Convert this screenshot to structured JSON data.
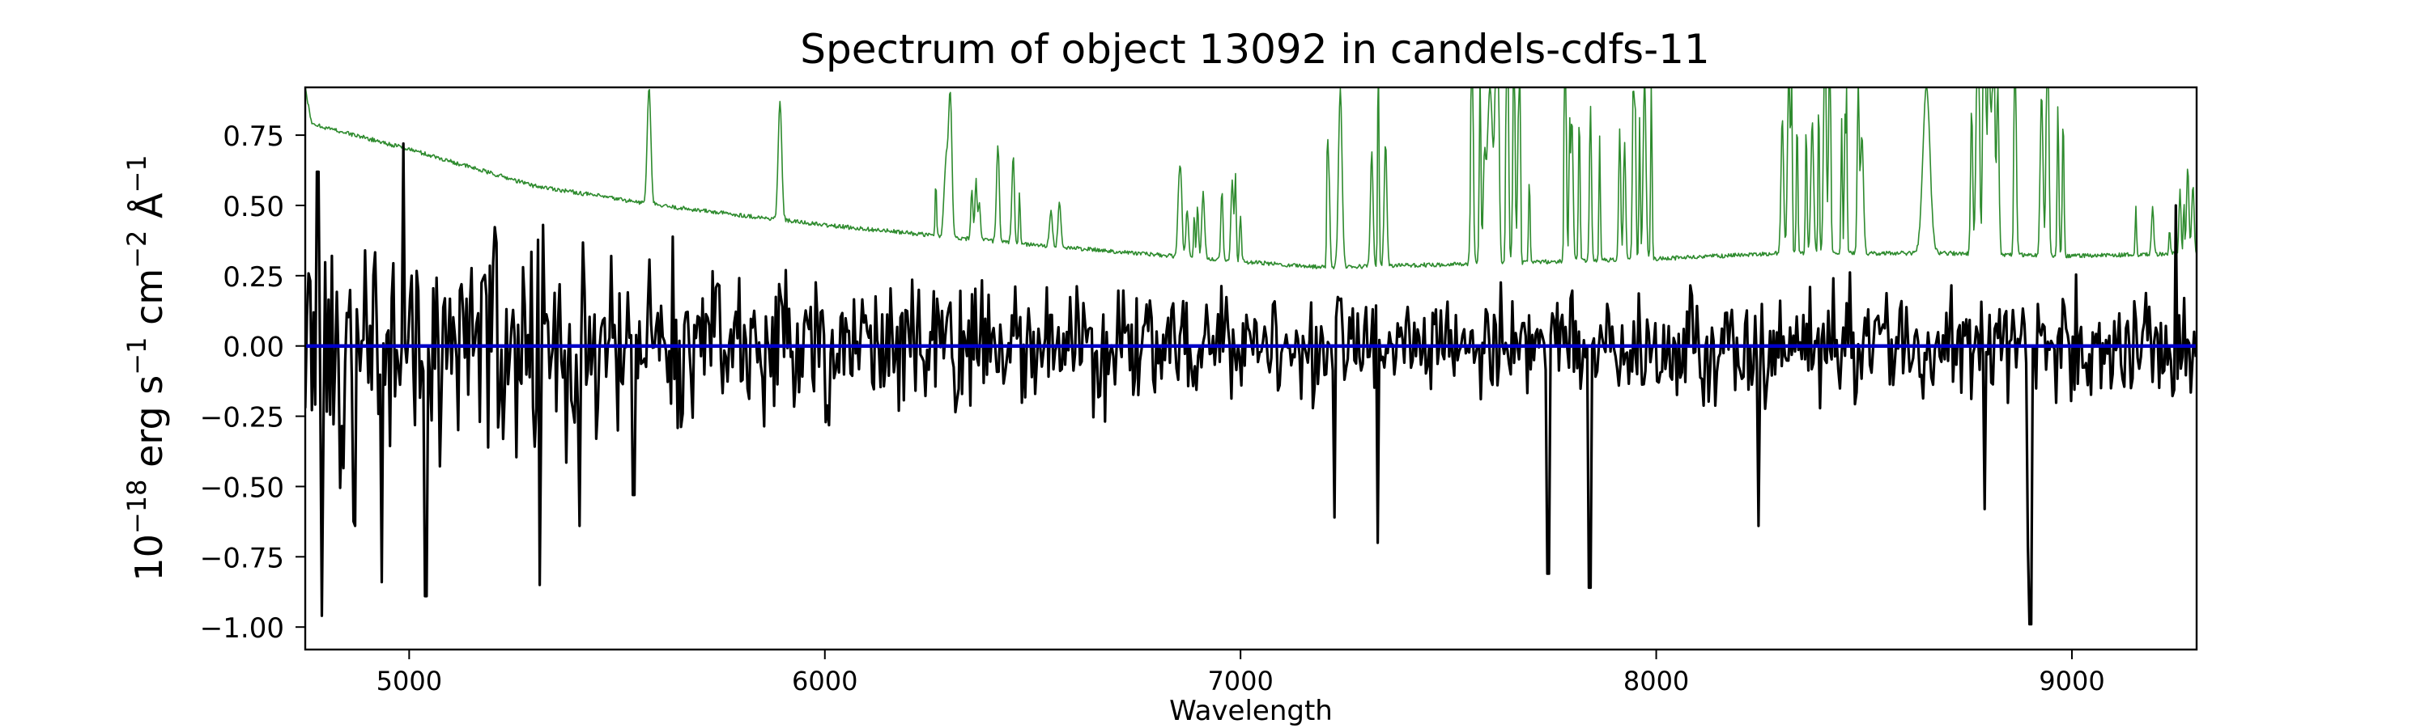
{
  "chart_data": {
    "type": "line",
    "title": "Spectrum of object 13092 in candels-cdfs-11",
    "xlabel": "Wavelength",
    "ylabel_parts": [
      "10",
      "−18",
      " erg s",
      "−1",
      " cm",
      "−2",
      " Å",
      "−1"
    ],
    "xlim": [
      4750,
      9300
    ],
    "ylim": [
      -1.08,
      0.92
    ],
    "x_ticks": [
      5000,
      6000,
      7000,
      8000,
      9000
    ],
    "y_ticks": [
      0.75,
      0.5,
      0.25,
      0.0,
      -0.25,
      -0.5,
      -0.75,
      -1.0
    ],
    "x_tick_labels": [
      "5000",
      "6000",
      "7000",
      "8000",
      "9000"
    ],
    "y_tick_labels": [
      "0.75",
      "0.50",
      "0.25",
      "0.00",
      "−0.25",
      "−0.50",
      "−0.75",
      "−1.00"
    ],
    "series": [
      {
        "role": "flux",
        "color": "#000000",
        "sampling": {
          "start": 4750,
          "end": 9300,
          "step": 4
        },
        "noise_seed": 13092,
        "spikes": [
          {
            "x": 4780,
            "y": 0.62
          },
          {
            "x": 4790,
            "y": -0.96
          },
          {
            "x": 4870,
            "y": -0.64
          },
          {
            "x": 4935,
            "y": -0.84
          },
          {
            "x": 4985,
            "y": 0.72
          },
          {
            "x": 5040,
            "y": -0.89
          },
          {
            "x": 5315,
            "y": -0.85
          },
          {
            "x": 5410,
            "y": -0.64
          },
          {
            "x": 5540,
            "y": -0.53
          },
          {
            "x": 7225,
            "y": -0.61
          },
          {
            "x": 7330,
            "y": -0.7
          },
          {
            "x": 7740,
            "y": -0.81
          },
          {
            "x": 7840,
            "y": -0.86
          },
          {
            "x": 8245,
            "y": -0.64
          },
          {
            "x": 8790,
            "y": -0.58
          },
          {
            "x": 8895,
            "y": -0.71
          },
          {
            "x": 8900,
            "y": -0.99
          },
          {
            "x": 9250,
            "y": 0.5
          }
        ]
      },
      {
        "role": "noise",
        "color": "#2e8b2e",
        "continuum": [
          {
            "x": 4750,
            "y": 0.92
          },
          {
            "x": 4765,
            "y": 0.79
          },
          {
            "x": 5000,
            "y": 0.7
          },
          {
            "x": 5300,
            "y": 0.57
          },
          {
            "x": 5600,
            "y": 0.5
          },
          {
            "x": 6000,
            "y": 0.43
          },
          {
            "x": 6500,
            "y": 0.36
          },
          {
            "x": 7000,
            "y": 0.3
          },
          {
            "x": 7200,
            "y": 0.28
          },
          {
            "x": 7500,
            "y": 0.29
          },
          {
            "x": 8000,
            "y": 0.31
          },
          {
            "x": 8300,
            "y": 0.33
          },
          {
            "x": 8700,
            "y": 0.33
          },
          {
            "x": 9000,
            "y": 0.32
          },
          {
            "x": 9300,
            "y": 0.33
          }
        ],
        "lines": [
          {
            "x": 5577,
            "y": 0.92,
            "w": 6
          },
          {
            "x": 5892,
            "y": 0.87,
            "w": 6
          },
          {
            "x": 6300,
            "y": 0.82,
            "w": 6
          },
          {
            "x": 6364,
            "y": 0.45,
            "w": 5
          },
          {
            "x": 7240,
            "y": 0.92,
            "w": 6
          },
          {
            "x": 7600,
            "y": 0.92,
            "w": 10
          },
          {
            "x": 8650,
            "y": 0.92,
            "w": 12
          }
        ],
        "forests": [
          {
            "start": 6200,
            "end": 6600,
            "count": 14,
            "min": 0.1,
            "max": 0.22
          },
          {
            "start": 6830,
            "end": 7000,
            "count": 10,
            "min": 0.15,
            "max": 0.3
          },
          {
            "start": 7200,
            "end": 7350,
            "count": 6,
            "min": 0.3,
            "max": 0.55
          },
          {
            "start": 7500,
            "end": 7700,
            "count": 14,
            "min": 0.25,
            "max": 0.7
          },
          {
            "start": 7750,
            "end": 8000,
            "count": 14,
            "min": 0.4,
            "max": 0.7
          },
          {
            "start": 8280,
            "end": 8500,
            "count": 16,
            "min": 0.4,
            "max": 0.65
          },
          {
            "start": 8750,
            "end": 9000,
            "count": 18,
            "min": 0.45,
            "max": 0.65
          },
          {
            "start": 9150,
            "end": 9300,
            "count": 8,
            "min": 0.05,
            "max": 0.25
          }
        ]
      },
      {
        "role": "zero",
        "color": "#0000c8",
        "y": 0.0
      }
    ]
  }
}
